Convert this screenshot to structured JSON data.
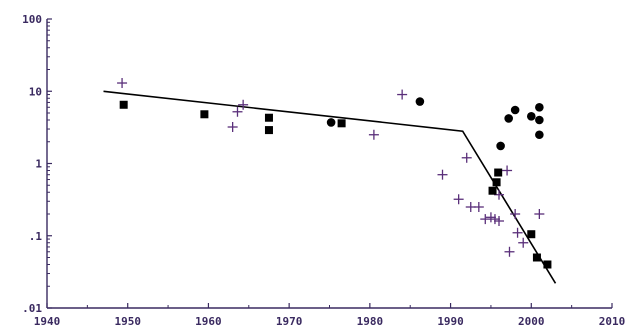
{
  "chart_data": {
    "type": "scatter",
    "title": "",
    "xlabel": "",
    "ylabel": "",
    "xlim": [
      1940,
      2010
    ],
    "ylim": [
      0.01,
      100
    ],
    "y_scale": "log",
    "grid": false,
    "legend": "none",
    "x_ticks": [
      {
        "value": 1940,
        "label": "1940"
      },
      {
        "value": 1950,
        "label": "1950"
      },
      {
        "value": 1960,
        "label": "1960"
      },
      {
        "value": 1970,
        "label": "1970"
      },
      {
        "value": 1980,
        "label": "1980"
      },
      {
        "value": 1990,
        "label": "1990"
      },
      {
        "value": 2000,
        "label": "2000"
      },
      {
        "value": 2010,
        "label": "2010"
      }
    ],
    "y_ticks": [
      {
        "value": 0.01,
        "label": ".01"
      },
      {
        "value": 0.1,
        "label": ".1"
      },
      {
        "value": 1,
        "label": "1"
      },
      {
        "value": 10,
        "label": "10"
      },
      {
        "value": 100,
        "label": "100"
      }
    ],
    "colors": {
      "axis": "#3a2a60",
      "tick_label": "#3a2a60",
      "plus": "#5a2f7a",
      "square": "#000000",
      "circle": "#000000",
      "fit_line": "#000000"
    },
    "series": [
      {
        "marker": "plus",
        "points": [
          [
            1949.3,
            13
          ],
          [
            1963,
            3.2
          ],
          [
            1963.6,
            5.2
          ],
          [
            1964.3,
            6.5
          ],
          [
            1980.5,
            2.5
          ],
          [
            1984,
            9
          ],
          [
            1989,
            0.7
          ],
          [
            1991,
            0.32
          ],
          [
            1992,
            1.2
          ],
          [
            1992.5,
            0.25
          ],
          [
            1993.5,
            0.25
          ],
          [
            1994.3,
            0.17
          ],
          [
            1995,
            0.18
          ],
          [
            1995.5,
            0.17
          ],
          [
            1996,
            0.16
          ],
          [
            1996,
            0.37
          ],
          [
            1997,
            0.8
          ],
          [
            1997.3,
            0.06
          ],
          [
            1998,
            0.2
          ],
          [
            1998.3,
            0.11
          ],
          [
            1999,
            0.08
          ],
          [
            2001,
            0.2
          ]
        ]
      },
      {
        "marker": "square",
        "points": [
          [
            1949.5,
            6.5
          ],
          [
            1959.5,
            4.8
          ],
          [
            1967.5,
            4.3
          ],
          [
            1967.5,
            2.9
          ],
          [
            1976.5,
            3.6
          ],
          [
            1995.2,
            0.42
          ],
          [
            1995.7,
            0.55
          ],
          [
            1995.9,
            0.75
          ],
          [
            2000,
            0.105
          ],
          [
            2000.7,
            0.05
          ],
          [
            2002,
            0.04
          ]
        ]
      },
      {
        "marker": "circle",
        "points": [
          [
            1975.2,
            3.7
          ],
          [
            1986.2,
            7.2
          ],
          [
            1996.2,
            1.75
          ],
          [
            1997.2,
            4.2
          ],
          [
            1998,
            5.5
          ],
          [
            2000,
            4.5
          ],
          [
            2001,
            6
          ],
          [
            2001,
            4
          ],
          [
            2001,
            2.5
          ]
        ]
      }
    ],
    "fit_line": {
      "points": [
        [
          1947,
          10
        ],
        [
          1991.5,
          2.8
        ],
        [
          2003,
          0.022
        ]
      ]
    }
  }
}
